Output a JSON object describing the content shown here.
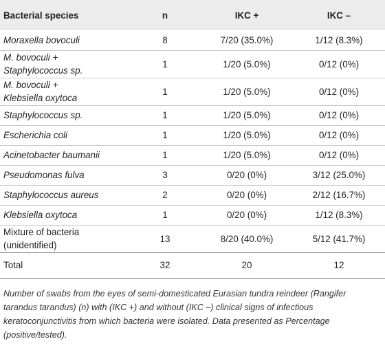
{
  "table": {
    "headers": {
      "species": "Bacterial species",
      "n": "n",
      "ikc_pos": "IKC +",
      "ikc_neg": "IKC –"
    },
    "rows": [
      {
        "species_line1": "Moraxella bovoculi",
        "species_line2": "",
        "italic": true,
        "n": "8",
        "ikc_pos": "7/20 (35.0%)",
        "ikc_neg": "1/12 (8.3%)"
      },
      {
        "species_line1": "M. bovoculi +",
        "species_line2": "Staphylococcus sp.",
        "italic": true,
        "n": "1",
        "ikc_pos": "1/20 (5.0%)",
        "ikc_neg": "0/12 (0%)"
      },
      {
        "species_line1": "M. bovoculi +",
        "species_line2": "Klebsiella oxytoca",
        "italic": true,
        "n": "1",
        "ikc_pos": "1/20 (5.0%)",
        "ikc_neg": "0/12 (0%)"
      },
      {
        "species_line1": "Staphylococcus sp.",
        "species_line2": "",
        "italic": true,
        "n": "1",
        "ikc_pos": "1/20 (5.0%)",
        "ikc_neg": "0/12 (0%)"
      },
      {
        "species_line1": "Escherichia coli",
        "species_line2": "",
        "italic": true,
        "n": "1",
        "ikc_pos": "1/20 (5.0%)",
        "ikc_neg": "0/12 (0%)"
      },
      {
        "species_line1": "Acinetobacter baumanii",
        "species_line2": "",
        "italic": true,
        "n": "1",
        "ikc_pos": "1/20 (5.0%)",
        "ikc_neg": "0/12 (0%)"
      },
      {
        "species_line1": "Pseudomonas fulva",
        "species_line2": "",
        "italic": true,
        "n": "3",
        "ikc_pos": "0/20 (0%)",
        "ikc_neg": "3/12 (25.0%)"
      },
      {
        "species_line1": "Staphylococcus aureus",
        "species_line2": "",
        "italic": true,
        "n": "2",
        "ikc_pos": "0/20 (0%)",
        "ikc_neg": "2/12 (16.7%)"
      },
      {
        "species_line1": "Klebsiella oxytoca",
        "species_line2": "",
        "italic": true,
        "n": "1",
        "ikc_pos": "0/20 (0%)",
        "ikc_neg": "1/12 (8.3%)"
      },
      {
        "species_line1": "Mixture of bacteria",
        "species_line2": "(unidentified)",
        "italic": false,
        "n": "13",
        "ikc_pos": "8/20 (40.0%)",
        "ikc_neg": "5/12 (41.7%)"
      }
    ],
    "total": {
      "label": "Total",
      "n": "32",
      "ikc_pos": "20",
      "ikc_neg": "12"
    }
  },
  "caption": "Number of swabs from the eyes of semi-domesticated Eurasian tundra reindeer (Rangifer tarandus tarandus) (n) with (IKC +) and without (IKC –) clinical signs of infectious keratoconjunctivitis from which bacteria were isolated. Data presented as Percentage (positive/tested)."
}
